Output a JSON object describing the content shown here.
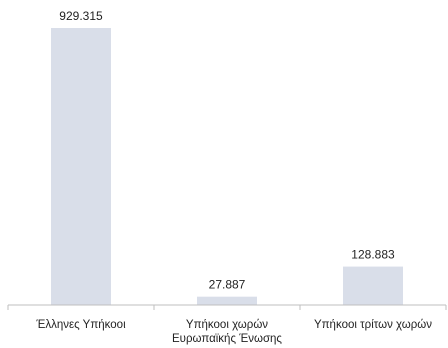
{
  "chart_data": {
    "type": "bar",
    "categories": [
      [
        "Έλληνες Υπήκοοι"
      ],
      [
        "Υπήκοοι χωρών",
        "Ευρωπαϊκής Ένωσης"
      ],
      [
        "Υπήκοοι τρίτων χωρών"
      ]
    ],
    "values": [
      929315,
      27887,
      128883
    ],
    "value_labels": [
      "929.315",
      "27.887",
      "128.883"
    ],
    "title": "",
    "xlabel": "",
    "ylabel": "",
    "ylim": [
      0,
      929315
    ],
    "grid": false,
    "legend": "none",
    "colors": {
      "bar": "#d9dee9",
      "axis": "#bfbfbf",
      "text": "#222222"
    }
  }
}
